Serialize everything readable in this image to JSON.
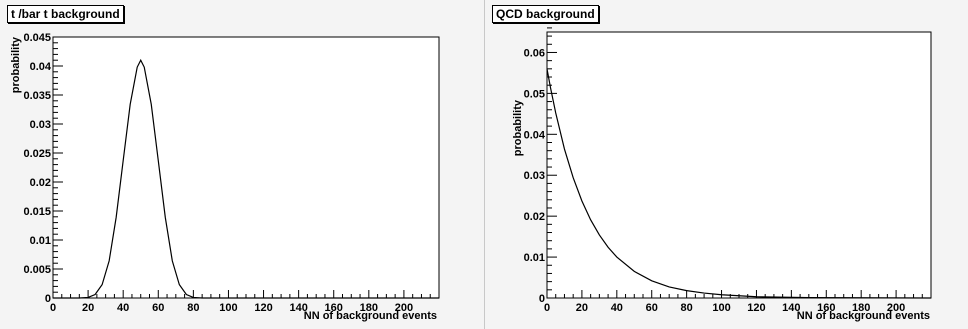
{
  "chart_data": [
    {
      "type": "line",
      "title": "t /bar t background",
      "xlabel": "NN of background events",
      "ylabel": "probability",
      "xlim": [
        0,
        220
      ],
      "ylim": [
        0,
        0.045
      ],
      "x_ticks": [
        0,
        20,
        40,
        60,
        80,
        100,
        120,
        140,
        160,
        180,
        200
      ],
      "x_tick_labels": [
        "0",
        "20",
        "40",
        "60",
        "80",
        "100",
        "120",
        "140",
        "160",
        "180",
        "200"
      ],
      "y_ticks": [
        0,
        0.005,
        0.01,
        0.015,
        0.02,
        0.025,
        0.03,
        0.035,
        0.04,
        0.045
      ],
      "y_tick_labels": [
        "0",
        "0.005",
        "0.01",
        "0.015",
        "0.02",
        "0.025",
        "0.03",
        "0.035",
        "0.04",
        "0.045"
      ],
      "series": [
        {
          "x": [
            0,
            15,
            20,
            24,
            28,
            32,
            36,
            40,
            44,
            48,
            50,
            52,
            56,
            60,
            64,
            68,
            72,
            76,
            80,
            85,
            90,
            220
          ],
          "y": [
            0,
            0,
            0.0001,
            0.0006,
            0.0023,
            0.0064,
            0.0139,
            0.0237,
            0.0334,
            0.0398,
            0.041,
            0.0398,
            0.0334,
            0.0237,
            0.0139,
            0.0064,
            0.0023,
            0.0006,
            0.0001,
            0,
            0,
            0
          ]
        }
      ]
    },
    {
      "type": "line",
      "title": "QCD background",
      "xlabel": "NN of background events",
      "ylabel": "probability",
      "xlim": [
        0,
        220
      ],
      "ylim": [
        0,
        0.065
      ],
      "x_ticks": [
        0,
        20,
        40,
        60,
        80,
        100,
        120,
        140,
        160,
        180,
        200
      ],
      "x_tick_labels": [
        "0",
        "20",
        "40",
        "60",
        "80",
        "100",
        "120",
        "140",
        "160",
        "180",
        "200"
      ],
      "y_ticks": [
        0,
        0.01,
        0.02,
        0.03,
        0.04,
        0.05,
        0.06
      ],
      "y_tick_labels": [
        "0",
        "0.01",
        "0.02",
        "0.03",
        "0.04",
        "0.05",
        "0.06"
      ],
      "series": [
        {
          "x": [
            0,
            2,
            5,
            10,
            15,
            20,
            25,
            30,
            35,
            40,
            50,
            60,
            70,
            80,
            90,
            100,
            120,
            150,
            220
          ],
          "y": [
            0.056,
            0.0514,
            0.0452,
            0.0364,
            0.0294,
            0.0237,
            0.0191,
            0.0154,
            0.0124,
            0.01,
            0.0065,
            0.0042,
            0.0027,
            0.0018,
            0.0012,
            0.0008,
            0.0003,
            0.0001,
            0
          ]
        }
      ]
    }
  ]
}
